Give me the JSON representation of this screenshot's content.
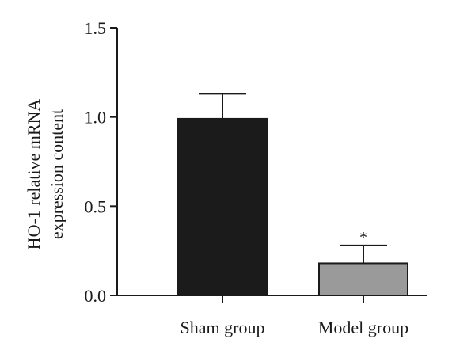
{
  "chart_data": {
    "type": "bar",
    "categories": [
      "Sham group",
      "Model group"
    ],
    "values": [
      0.99,
      0.18
    ],
    "errors": [
      0.14,
      0.1
    ],
    "annotations": [
      "",
      "*"
    ],
    "bar_colors": [
      "#1b1b1b",
      "#9a9a9a"
    ],
    "ylabel_lines": [
      "HO-1 relative mRNA",
      "expression content"
    ],
    "ylim": [
      0,
      1.5
    ],
    "yticks": [
      "0.0",
      "0.5",
      "1.0",
      "1.5"
    ],
    "ytick_values": [
      0,
      0.5,
      1.0,
      1.5
    ],
    "grid": false,
    "legend": "none"
  }
}
